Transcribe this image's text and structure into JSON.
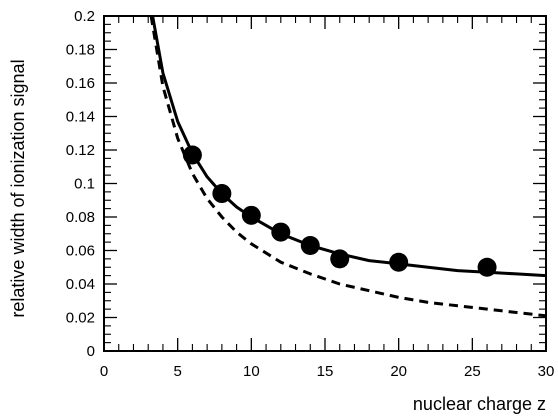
{
  "chart_data": {
    "type": "scatter",
    "title": "",
    "xlabel": "nuclear charge z",
    "ylabel": "relative width of ionization signal",
    "xlim": [
      0,
      30
    ],
    "ylim": [
      0,
      0.2
    ],
    "x_ticks": [
      0,
      5,
      10,
      15,
      20,
      25,
      30
    ],
    "x_tick_labels": [
      "0",
      "5",
      "10",
      "15",
      "20",
      "25",
      "30"
    ],
    "y_ticks": [
      0,
      0.02,
      0.04,
      0.06,
      0.08,
      0.1,
      0.12,
      0.14,
      0.16,
      0.18,
      0.2
    ],
    "y_tick_labels": [
      "0",
      "0.02",
      "0.04",
      "0.06",
      "0.08",
      "0.1",
      "0.12",
      "0.14",
      "0.16",
      "0.18",
      "0.2"
    ],
    "grid": false,
    "series": [
      {
        "style": "markers",
        "color": "#000000",
        "x": [
          6,
          8,
          10,
          12,
          14,
          16,
          20,
          26
        ],
        "y": [
          0.117,
          0.094,
          0.081,
          0.071,
          0.063,
          0.055,
          0.053,
          0.05
        ]
      },
      {
        "style": "solid-line",
        "color": "#000000",
        "x": [
          3.3,
          4,
          5,
          6,
          7,
          8,
          9,
          10,
          12,
          14,
          16,
          18,
          20,
          22,
          24,
          26,
          28,
          30
        ],
        "y": [
          0.2,
          0.166,
          0.137,
          0.118,
          0.104,
          0.094,
          0.086,
          0.08,
          0.07,
          0.063,
          0.058,
          0.054,
          0.052,
          0.05,
          0.048,
          0.047,
          0.046,
          0.045
        ]
      },
      {
        "style": "dashed-line",
        "color": "#000000",
        "x": [
          3.2,
          4,
          5,
          6,
          7,
          8,
          9,
          10,
          12,
          14,
          16,
          18,
          20,
          22,
          24,
          26,
          28,
          30
        ],
        "y": [
          0.2,
          0.158,
          0.127,
          0.106,
          0.091,
          0.08,
          0.071,
          0.064,
          0.053,
          0.046,
          0.04,
          0.036,
          0.032,
          0.029,
          0.027,
          0.025,
          0.023,
          0.021
        ]
      }
    ]
  }
}
